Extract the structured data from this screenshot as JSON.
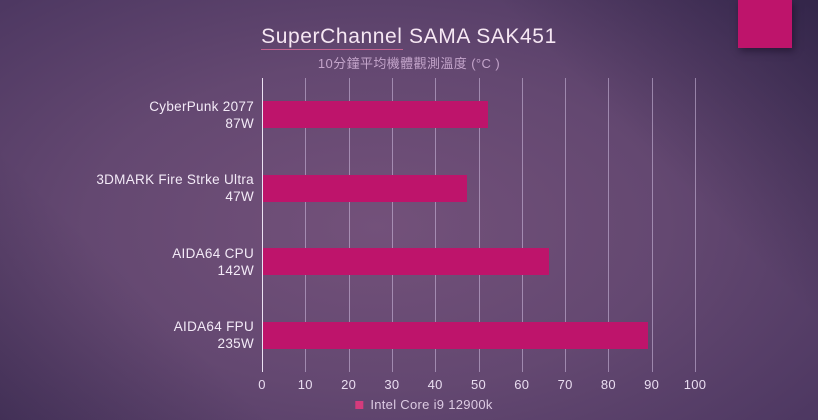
{
  "deco": {
    "color": "#be146b"
  },
  "colors": {
    "bar": "#be146b",
    "legend_marker": "#d43b7c",
    "background_center": "#73517a",
    "background_edge": "#2e2149",
    "gridline": "#d1bfe1",
    "title_text": "#f6e7f3"
  },
  "chart_data": {
    "type": "bar",
    "orientation": "horizontal",
    "title": "SuperChannel SAMA SAK451",
    "title_underlined_part": "SuperChannel",
    "title_rest_part": " SAMA SAK451",
    "subtitle": "10分鐘平均機體觀測溫度 (°C )",
    "categories": [
      "CyberPunk 2077",
      "3DMARK Fire Strke Ultra",
      "AIDA64 CPU",
      "AIDA64 FPU"
    ],
    "category_sublabels": [
      "87W",
      "47W",
      "142W",
      "235W"
    ],
    "values": [
      52,
      47,
      66,
      89
    ],
    "series_name": "Intel Core i9 12900k",
    "xlabel": "",
    "ylabel": "",
    "xlim": [
      0,
      100
    ],
    "xstep": 10,
    "grid": true,
    "legend_position": "bottom-center",
    "bar_color": "#be146b"
  }
}
